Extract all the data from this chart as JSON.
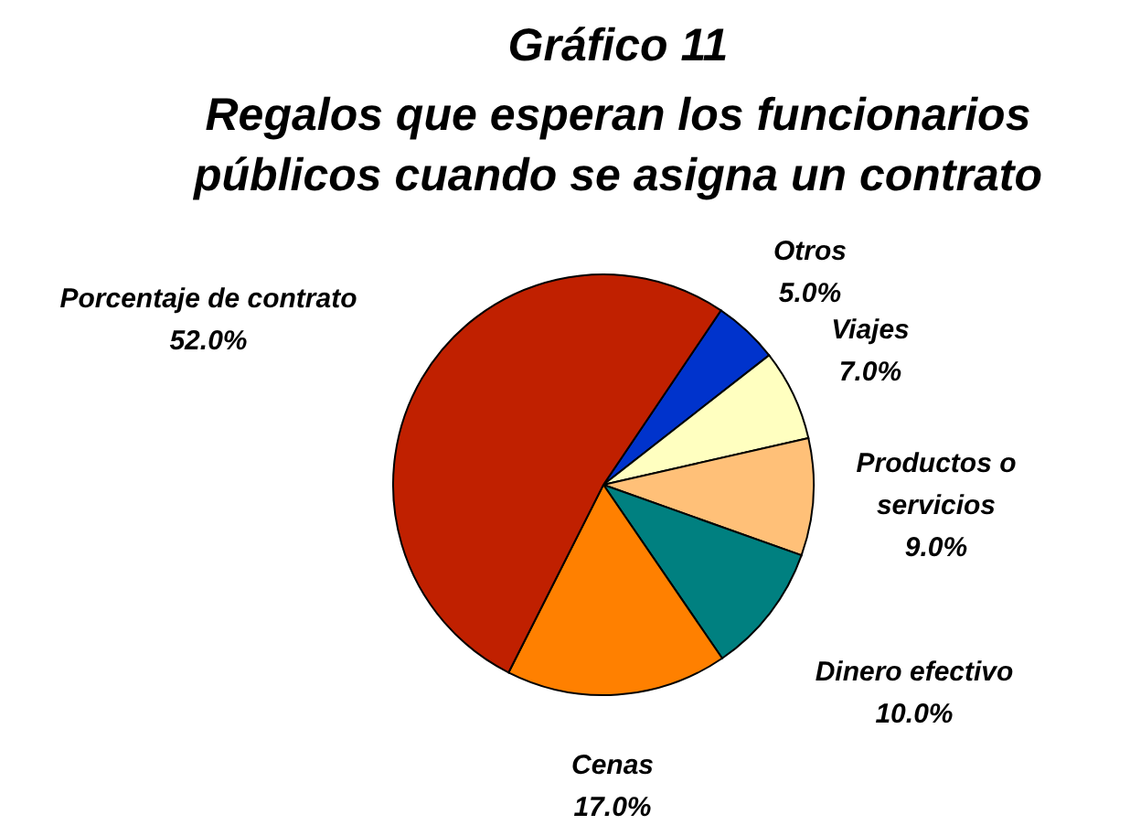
{
  "chart_data": {
    "type": "pie",
    "title": "Gráfico 11",
    "subtitle": "Regalos que esperan los funcionarios públicos cuando se asigna un contrato",
    "categories": [
      "Otros",
      "Viajes",
      "Productos o servicios",
      "Dinero efectivo",
      "Cenas",
      "Porcentaje de contrato"
    ],
    "values": [
      5,
      7,
      9,
      10,
      17,
      52
    ],
    "value_labels": [
      "5.0%",
      "7.0%",
      "9.0%",
      "10.0%",
      "17.0%",
      "52.0%"
    ],
    "colors": [
      "#0033cc",
      "#ffffc0",
      "#ffc078",
      "#008080",
      "#ff8000",
      "#c02000"
    ]
  }
}
